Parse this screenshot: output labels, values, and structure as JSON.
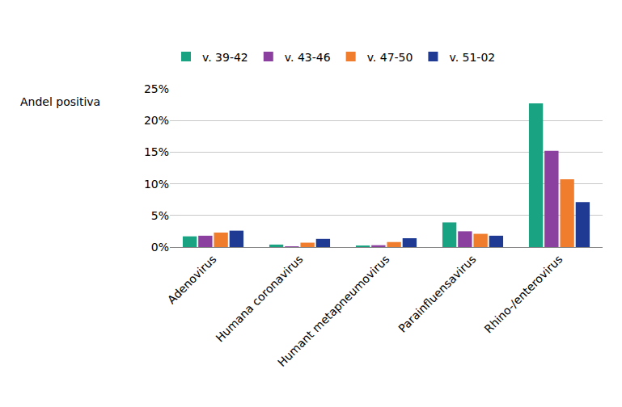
{
  "chart_data": {
    "type": "bar",
    "ylabel": "Andel positiva",
    "categories": [
      "Adenovirus",
      "Humana coronavirus",
      "Humant metapneumovirus",
      "Parainfluensavirus",
      "Rhino-/enterovirus"
    ],
    "series": [
      {
        "name": "v. 39-42",
        "color": "#1aa383",
        "values": [
          1.7,
          0.4,
          0.2,
          3.9,
          22.7
        ]
      },
      {
        "name": "v. 43-46",
        "color": "#8b3f9e",
        "values": [
          1.8,
          0.1,
          0.3,
          2.5,
          15.2
        ]
      },
      {
        "name": "v. 47-50",
        "color": "#f07c2e",
        "values": [
          2.3,
          0.7,
          0.8,
          2.1,
          10.7
        ]
      },
      {
        "name": "v. 51-02",
        "color": "#1f3a93",
        "values": [
          2.6,
          1.3,
          1.4,
          1.8,
          7.1
        ]
      }
    ],
    "ylim": [
      0,
      25
    ],
    "yticks": [
      {
        "value": 0,
        "label": "0%"
      },
      {
        "value": 5,
        "label": "5%"
      },
      {
        "value": 10,
        "label": "10%"
      },
      {
        "value": 15,
        "label": "15%"
      },
      {
        "value": 20,
        "label": "20%"
      },
      {
        "value": 25,
        "label": "25%"
      }
    ],
    "grid": true,
    "legend": "top"
  }
}
